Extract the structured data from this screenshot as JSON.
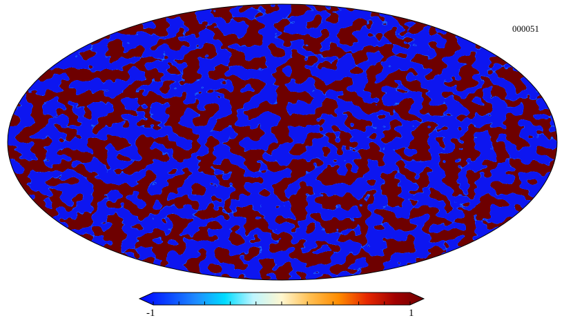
{
  "map": {
    "projection": "mollweide",
    "id_label": "000051"
  },
  "colorbar": {
    "min_label": "-1",
    "max_label": "1",
    "min": -1,
    "max": 1,
    "colors": [
      "#0000ff",
      "#0a44ff",
      "#1e8cff",
      "#00dcff",
      "#bef5ff",
      "#fff7d0",
      "#ffbe50",
      "#ff8c00",
      "#e62800",
      "#a00000",
      "#6e0000"
    ],
    "tick_count": 11
  },
  "colors": {
    "low": "#0a14f0",
    "high": "#6e0000",
    "outline": "#000000"
  }
}
